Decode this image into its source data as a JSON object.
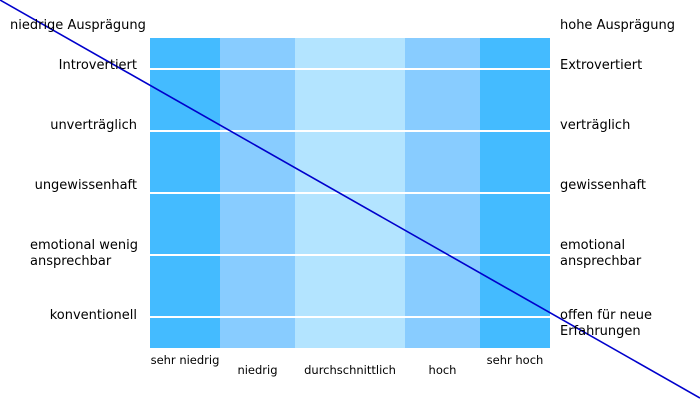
{
  "header": {
    "left": "niedrige Ausprägung",
    "right": "hohe Ausprägung"
  },
  "chart_data": {
    "type": "table",
    "title": "",
    "columns": [
      "sehr niedrig",
      "niedrig",
      "durchschnittlich",
      "hoch",
      "sehr hoch"
    ],
    "column_colors": [
      "#44bbff",
      "#88ccff",
      "#b3e4ff",
      "#88ccff",
      "#44bbff"
    ],
    "rows": [
      {
        "low": "Introvertiert",
        "high": "Extrovertiert"
      },
      {
        "low": "unverträglich",
        "high": "verträglich"
      },
      {
        "low": "ungewissenhaft",
        "high": "gewissenhaft"
      },
      {
        "low": "emotional wenig ansprechbar",
        "high": "emotional ansprechbar"
      },
      {
        "low": "konventionell",
        "high": "offen für neue Erfahrungen"
      }
    ],
    "line_color": "#0000cc",
    "divider_color": "#ffffff"
  }
}
